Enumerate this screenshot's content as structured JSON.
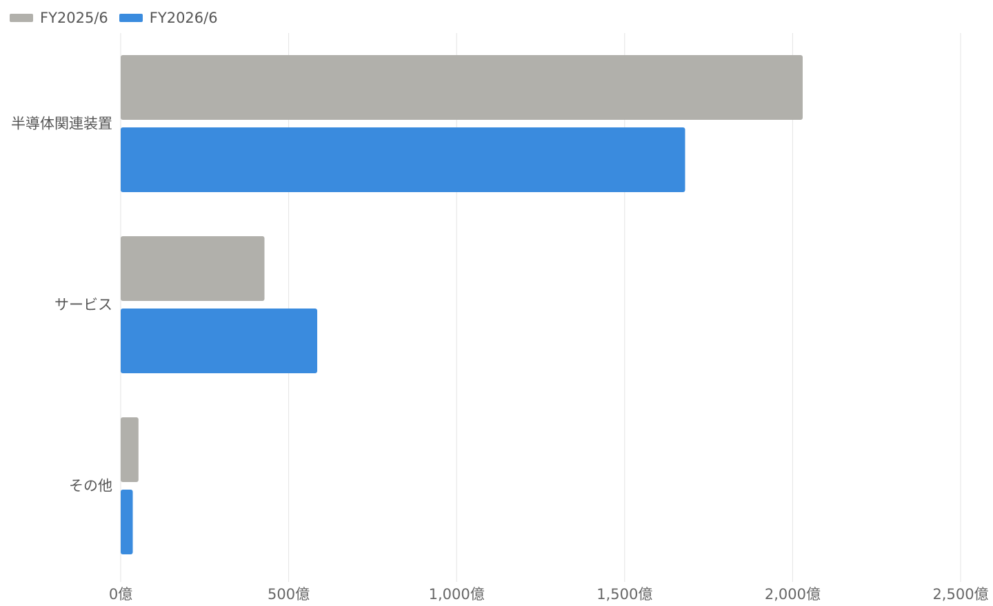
{
  "chart_data": {
    "type": "bar",
    "orientation": "horizontal",
    "categories": [
      "半導体関連装置",
      "サービス",
      "その他"
    ],
    "series": [
      {
        "name": "FY2025/6",
        "color": "#b1b0ab",
        "values": [
          2030,
          428,
          53
        ]
      },
      {
        "name": "FY2026/6",
        "color": "#3a8bde",
        "values": [
          1680,
          585,
          36
        ]
      }
    ],
    "x_ticks": [
      0,
      500,
      1000,
      1500,
      2000,
      2500
    ],
    "x_tick_labels": [
      "0億",
      "500億",
      "1,000億",
      "1,500億",
      "2,000億",
      "2,500億"
    ],
    "xlim": [
      0,
      2500
    ],
    "grid": "vertical",
    "legend_position": "top-left",
    "title": "",
    "xlabel": "",
    "ylabel": ""
  }
}
